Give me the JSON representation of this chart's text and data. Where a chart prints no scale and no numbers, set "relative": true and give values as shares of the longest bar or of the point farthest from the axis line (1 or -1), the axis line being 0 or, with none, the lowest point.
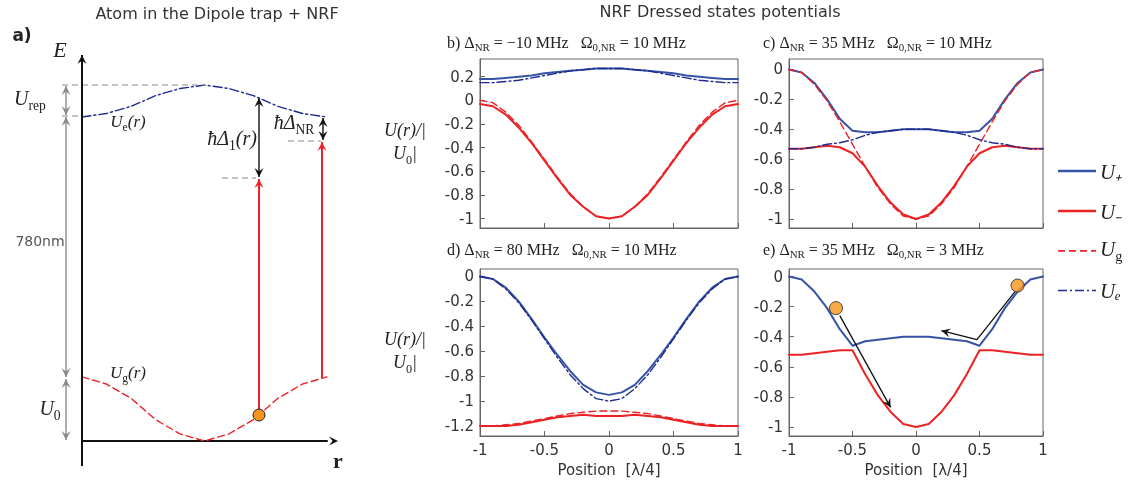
{
  "chart_data": [
    {
      "type": "line",
      "title": "Atom in the Dipole trap + NRF",
      "xlabel": "r",
      "ylabel": "E",
      "relative": true,
      "categories": [
        null,
        null,
        null,
        null,
        null,
        null,
        null,
        null,
        null,
        null,
        null
      ],
      "series": [
        {
          "name": "U$_{e}$(r)",
          "color": "#1e2a8f",
          "line_style": "dashdot",
          "values": [
            0.91,
            0.92,
            0.94,
            0.97,
            0.99,
            1,
            0.99,
            0.97,
            0.94,
            0.92,
            0.91
          ]
        },
        {
          "name": "U$_{g}$(r)",
          "color": "#ed2224",
          "line_style": "dashed",
          "values": [
            0.18,
            0.16,
            0.12,
            0.06,
            0.02,
            0,
            0.02,
            0.06,
            0.12,
            0.16,
            0.18
          ]
        }
      ],
      "annotations": [
        "a)",
        "U$_{rep}$",
        "ħΔ$_{1}$(r)",
        "ħΔ$_{NR}$",
        "780nm",
        "U$_{0}$"
      ]
    },
    {
      "type": "line",
      "title": "b) Δ$_{NR}$ = −10 MHz   Ω$_{0,NR}$ = 10 MHz",
      "ylabel": "U(r)/|U$_{0}$|",
      "annotations": [
        "NRF Dressed states potentials"
      ],
      "x": [
        -1,
        -0.9,
        -0.8,
        -0.7,
        -0.6,
        -0.5,
        -0.4,
        -0.3,
        -0.2,
        -0.1,
        0,
        0.1,
        0.2,
        0.3,
        0.4,
        0.5,
        0.6,
        0.7,
        0.8,
        0.9,
        1
      ],
      "xlim": [
        -1,
        1
      ],
      "xticks": [
        -1,
        -0.5,
        0,
        0.5,
        1
      ],
      "ylim": [
        -1.08,
        0.35
      ],
      "yticks": [
        -1,
        -0.8,
        -0.6,
        -0.4,
        -0.2,
        0,
        0.2
      ],
      "tick_labels": "y",
      "series": [
        {
          "color": "#3653a5",
          "line_style": "solid",
          "values": [
            0.18,
            0.18,
            0.19,
            0.2,
            0.21,
            0.23,
            0.24,
            0.25,
            0.26,
            0.27,
            0.27,
            0.27,
            0.26,
            0.25,
            0.24,
            0.23,
            0.21,
            0.2,
            0.19,
            0.18,
            0.18
          ]
        },
        {
          "color": "#ed2224",
          "line_style": "solid",
          "values": [
            -0.03,
            -0.05,
            -0.12,
            -0.23,
            -0.36,
            -0.51,
            -0.66,
            -0.8,
            -0.9,
            -0.98,
            -1,
            -0.98,
            -0.9,
            -0.8,
            -0.66,
            -0.51,
            -0.36,
            -0.23,
            -0.12,
            -0.05,
            -0.03
          ]
        },
        {
          "color": "#ed2224",
          "line_style": "dashed",
          "values": [
            0,
            -0.02,
            -0.1,
            -0.21,
            -0.35,
            -0.5,
            -0.65,
            -0.79,
            -0.9,
            -0.98,
            -1,
            -0.98,
            -0.9,
            -0.79,
            -0.65,
            -0.5,
            -0.35,
            -0.21,
            -0.1,
            -0.02,
            0
          ]
        },
        {
          "color": "#1e2a8f",
          "line_style": "dashdot",
          "values": [
            0.15,
            0.15,
            0.16,
            0.17,
            0.19,
            0.21,
            0.23,
            0.25,
            0.26,
            0.27,
            0.27,
            0.27,
            0.26,
            0.25,
            0.23,
            0.21,
            0.19,
            0.17,
            0.16,
            0.15,
            0.15
          ]
        }
      ]
    },
    {
      "type": "line",
      "title": "c) Δ$_{NR}$ = 35 MHz   Ω$_{0,NR}$ = 10 MHz",
      "legend": "right",
      "x": [
        -1,
        -0.9,
        -0.8,
        -0.7,
        -0.6,
        -0.5,
        -0.4,
        -0.3,
        -0.2,
        -0.1,
        0,
        0.1,
        0.2,
        0.3,
        0.4,
        0.5,
        0.6,
        0.7,
        0.8,
        0.9,
        1
      ],
      "xlim": [
        -1,
        1
      ],
      "xticks": [
        -1,
        -0.5,
        0,
        0.5,
        1
      ],
      "ylim": [
        -1.06,
        0.07
      ],
      "yticks": [
        -1,
        -0.8,
        -0.6,
        -0.4,
        -0.2,
        0
      ],
      "tick_labels": "y",
      "series": [
        {
          "name": "U₊",
          "color": "#3653a5",
          "line_style": "solid",
          "values": [
            0,
            -0.02,
            -0.09,
            -0.2,
            -0.33,
            -0.41,
            -0.42,
            -0.42,
            -0.41,
            -0.4,
            -0.4,
            -0.4,
            -0.41,
            -0.42,
            -0.42,
            -0.41,
            -0.33,
            -0.2,
            -0.09,
            -0.02,
            0
          ]
        },
        {
          "name": "U₋",
          "color": "#ed2224",
          "line_style": "solid",
          "values": [
            -0.53,
            -0.53,
            -0.52,
            -0.51,
            -0.52,
            -0.56,
            -0.65,
            -0.78,
            -0.89,
            -0.97,
            -1,
            -0.97,
            -0.89,
            -0.78,
            -0.65,
            -0.56,
            -0.52,
            -0.51,
            -0.52,
            -0.53,
            -0.53
          ]
        },
        {
          "name": "U$_{g}$",
          "color": "#ed2224",
          "line_style": "dashed",
          "values": [
            0,
            -0.02,
            -0.1,
            -0.21,
            -0.35,
            -0.5,
            -0.65,
            -0.79,
            -0.9,
            -0.98,
            -1,
            -0.98,
            -0.9,
            -0.79,
            -0.65,
            -0.5,
            -0.35,
            -0.21,
            -0.1,
            -0.02,
            0
          ]
        },
        {
          "name": "Uₑ",
          "color": "#1e2a8f",
          "line_style": "dashdot",
          "values": [
            -0.53,
            -0.53,
            -0.52,
            -0.5,
            -0.49,
            -0.47,
            -0.44,
            -0.42,
            -0.41,
            -0.4,
            -0.4,
            -0.4,
            -0.41,
            -0.42,
            -0.44,
            -0.47,
            -0.49,
            -0.5,
            -0.52,
            -0.53,
            -0.53
          ]
        }
      ]
    },
    {
      "type": "line",
      "title": "d) Δ$_{NR}$ = 80 MHz   Ω$_{0,NR}$ = 10 MHz",
      "ylabel": "U(r)/|U$_{0}$|",
      "xlabel": "Position  [λ/4]",
      "x": [
        -1,
        -0.9,
        -0.8,
        -0.7,
        -0.6,
        -0.5,
        -0.4,
        -0.3,
        -0.2,
        -0.1,
        0,
        0.1,
        0.2,
        0.3,
        0.4,
        0.5,
        0.6,
        0.7,
        0.8,
        0.9,
        1
      ],
      "xlim": [
        -1,
        1
      ],
      "xticks": [
        -1,
        -0.5,
        0,
        0.5,
        1
      ],
      "ylim": [
        -1.28,
        0.06
      ],
      "yticks": [
        -1.2,
        -1,
        -0.8,
        -0.6,
        -0.4,
        -0.2,
        0
      ],
      "series": [
        {
          "color": "#3653a5",
          "line_style": "solid",
          "values": [
            0,
            -0.02,
            -0.09,
            -0.2,
            -0.34,
            -0.49,
            -0.63,
            -0.76,
            -0.87,
            -0.93,
            -0.95,
            -0.93,
            -0.87,
            -0.76,
            -0.63,
            -0.49,
            -0.34,
            -0.2,
            -0.09,
            -0.02,
            0
          ]
        },
        {
          "color": "#ed2224",
          "line_style": "solid",
          "values": [
            -1.2,
            -1.2,
            -1.2,
            -1.19,
            -1.17,
            -1.15,
            -1.13,
            -1.12,
            -1.11,
            -1.12,
            -1.12,
            -1.12,
            -1.11,
            -1.12,
            -1.13,
            -1.15,
            -1.17,
            -1.19,
            -1.2,
            -1.2,
            -1.2
          ]
        },
        {
          "color": "#ed2224",
          "line_style": "dashed",
          "values": [
            -1.2,
            -1.2,
            -1.19,
            -1.18,
            -1.16,
            -1.14,
            -1.12,
            -1.1,
            -1.09,
            -1.08,
            -1.08,
            -1.08,
            -1.09,
            -1.1,
            -1.12,
            -1.14,
            -1.16,
            -1.18,
            -1.19,
            -1.2,
            -1.2
          ]
        },
        {
          "color": "#1e2a8f",
          "line_style": "dashdot",
          "values": [
            0,
            -0.02,
            -0.1,
            -0.21,
            -0.35,
            -0.5,
            -0.65,
            -0.79,
            -0.9,
            -0.98,
            -1,
            -0.98,
            -0.9,
            -0.79,
            -0.65,
            -0.5,
            -0.35,
            -0.21,
            -0.1,
            -0.02,
            0
          ]
        }
      ]
    },
    {
      "type": "line",
      "title": "e) Δ$_{NR}$ = 35 MHz   Ω$_{0,NR}$ = 3 MHz",
      "xlabel": "Position  [λ/4]",
      "x": [
        -1,
        -0.9,
        -0.8,
        -0.7,
        -0.6,
        -0.5,
        -0.4,
        -0.3,
        -0.2,
        -0.1,
        0,
        0.1,
        0.2,
        0.3,
        0.4,
        0.5,
        0.6,
        0.7,
        0.8,
        0.9,
        1
      ],
      "xlim": [
        -1,
        1
      ],
      "xticks": [
        -1,
        -0.5,
        0,
        0.5,
        1
      ],
      "ylim": [
        -1.06,
        0.05
      ],
      "yticks": [
        -1,
        -0.8,
        -0.6,
        -0.4,
        -0.2,
        0
      ],
      "series": [
        {
          "color": "#3653a5",
          "line_style": "solid",
          "values": [
            0,
            -0.02,
            -0.1,
            -0.21,
            -0.35,
            -0.46,
            -0.43,
            -0.42,
            -0.41,
            -0.4,
            -0.4,
            -0.4,
            -0.41,
            -0.42,
            -0.43,
            -0.46,
            -0.35,
            -0.21,
            -0.1,
            -0.02,
            0
          ]
        },
        {
          "color": "#ed2224",
          "line_style": "solid",
          "values": [
            -0.52,
            -0.52,
            -0.51,
            -0.5,
            -0.49,
            -0.49,
            -0.65,
            -0.79,
            -0.9,
            -0.98,
            -1,
            -0.98,
            -0.9,
            -0.79,
            -0.65,
            -0.49,
            -0.49,
            -0.5,
            -0.51,
            -0.52,
            -0.52
          ]
        },
        {
          "type": "scatter",
          "color": "#f7941d",
          "marker": "circle",
          "x": [
            -0.63,
            0.8
          ],
          "values": [
            -0.21,
            -0.06
          ]
        }
      ]
    }
  ]
}
